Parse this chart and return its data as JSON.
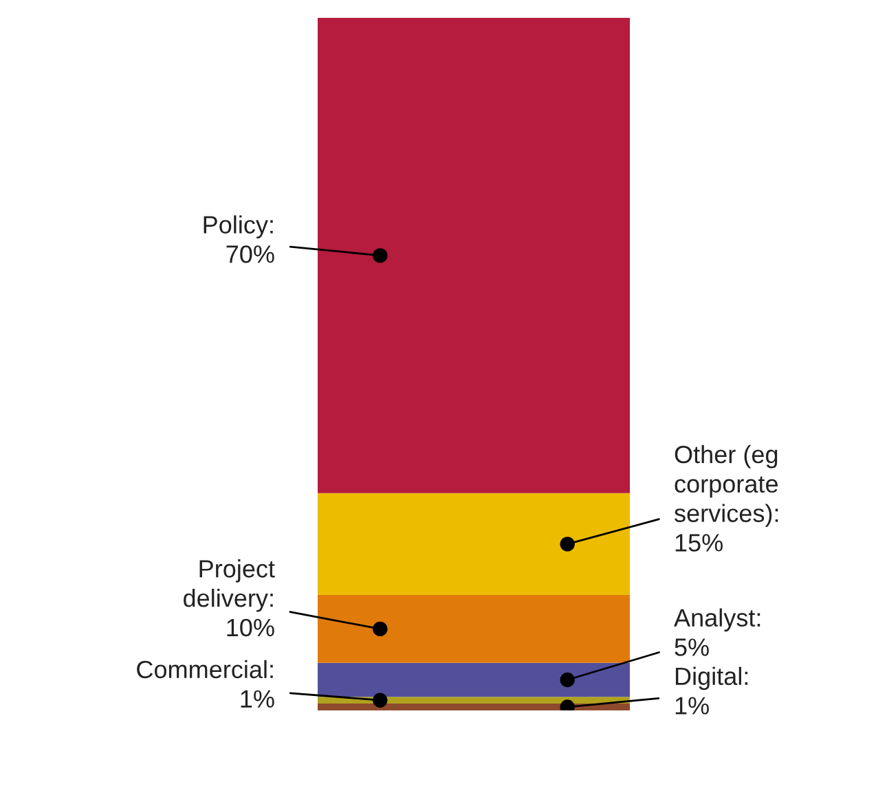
{
  "chart_data": {
    "type": "bar",
    "stacked": true,
    "categories": [
      null
    ],
    "legend": false,
    "series": [
      {
        "name": "Digital:",
        "color": "#8e4a2c",
        "values": [
          1
        ],
        "value_labels": [
          "1%"
        ]
      },
      {
        "name": "Commercial:",
        "color": "#b0a21e",
        "values": [
          1
        ],
        "value_labels": [
          "1%"
        ]
      },
      {
        "name": "Analyst:",
        "color": "#52509b",
        "values": [
          5
        ],
        "value_labels": [
          "5%"
        ]
      },
      {
        "name": "Project\ndelivery:",
        "color": "#e07a0b",
        "values": [
          10
        ],
        "value_labels": [
          "10%"
        ]
      },
      {
        "name": "Other (eg\ncorporate\nservices):",
        "color": "#ecbc00",
        "values": [
          15
        ],
        "value_labels": [
          "15%"
        ]
      },
      {
        "name": "Policy:",
        "color": "#b51c3d",
        "values": [
          70
        ],
        "value_labels": [
          "70%"
        ]
      }
    ]
  }
}
